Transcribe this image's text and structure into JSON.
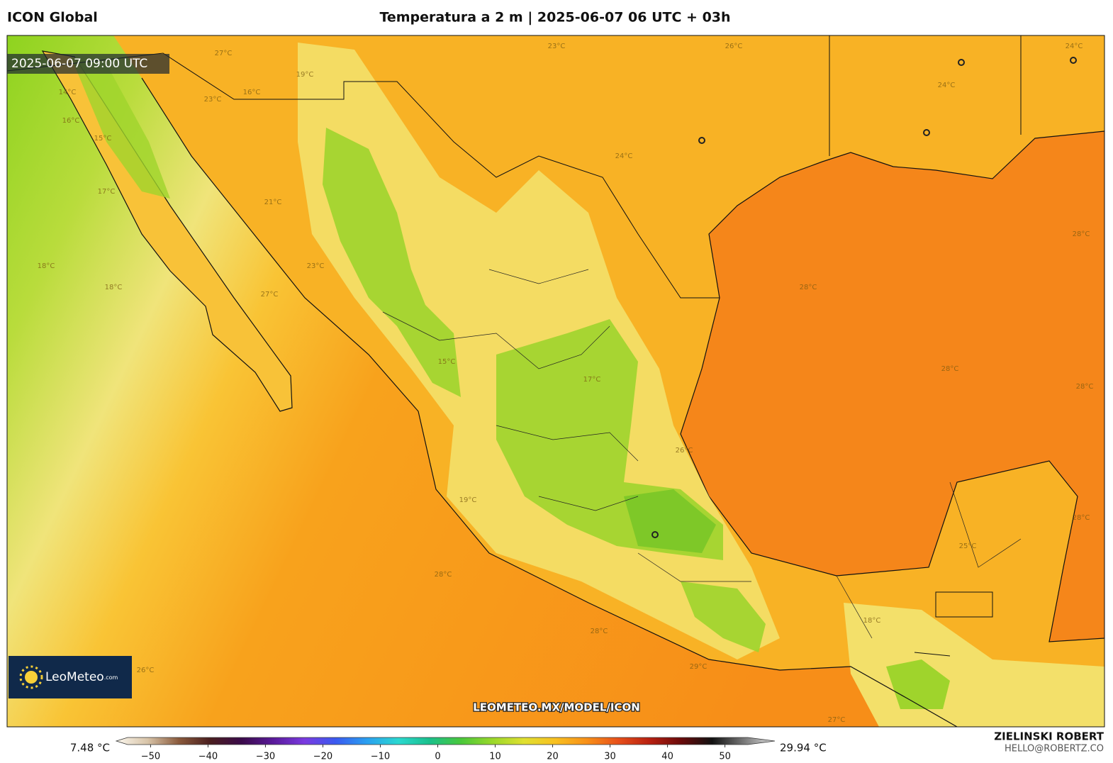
{
  "header": {
    "model": "ICON Global",
    "title": "Temperatura a 2 m | 2025-06-07 06 UTC + 03h"
  },
  "timestamp": "2025-06-07 09:00 UTC",
  "logo": {
    "name": "LeoMeteo",
    "suffix": ".com"
  },
  "watermark": "LEOMETEO.MX/MODEL/ICON",
  "credit": {
    "name": "ZIELINSKI ROBERT",
    "email": "HELLO@ROBERTZ.CO"
  },
  "colorbar": {
    "min_label": "7.48 °C",
    "max_label": "29.94 °C",
    "lim": [
      -54,
      54
    ],
    "ticks": [
      {
        "value": -50,
        "label": "−50"
      },
      {
        "value": -40,
        "label": "−40"
      },
      {
        "value": -30,
        "label": "−30"
      },
      {
        "value": -20,
        "label": "−20"
      },
      {
        "value": -10,
        "label": "−10"
      },
      0,
      10,
      20,
      30,
      40,
      50
    ],
    "colors": [
      "#fbf7ee",
      "#d8c4a8",
      "#8a5a3c",
      "#4a1e1e",
      "#3a0a4a",
      "#5a1a9a",
      "#7a3ae0",
      "#3a5af0",
      "#2aa0f0",
      "#2ad8d0",
      "#1ac08a",
      "#4ac83a",
      "#9ad82a",
      "#e0e030",
      "#f8c020",
      "#f89018",
      "#e8501a",
      "#b82010",
      "#6a0a0a",
      "#111111",
      "#777777",
      "#e0e0e0"
    ]
  },
  "contour_labels": [
    "26°C",
    "24°C",
    "24°C",
    "23°C",
    "24°C",
    "27°C",
    "19°C",
    "16°C",
    "23°C",
    "14°C",
    "16°C",
    "15°C",
    "17°C",
    "18°C",
    "18°C",
    "21°C",
    "23°C",
    "27°C",
    "28°C",
    "28°C",
    "28°C",
    "28°C",
    "25°C",
    "15°C",
    "17°C",
    "19°C",
    "28°C",
    "28°C",
    "29°C",
    "27°C",
    "26°C",
    "18°C",
    "26°C",
    "28°C"
  ]
}
